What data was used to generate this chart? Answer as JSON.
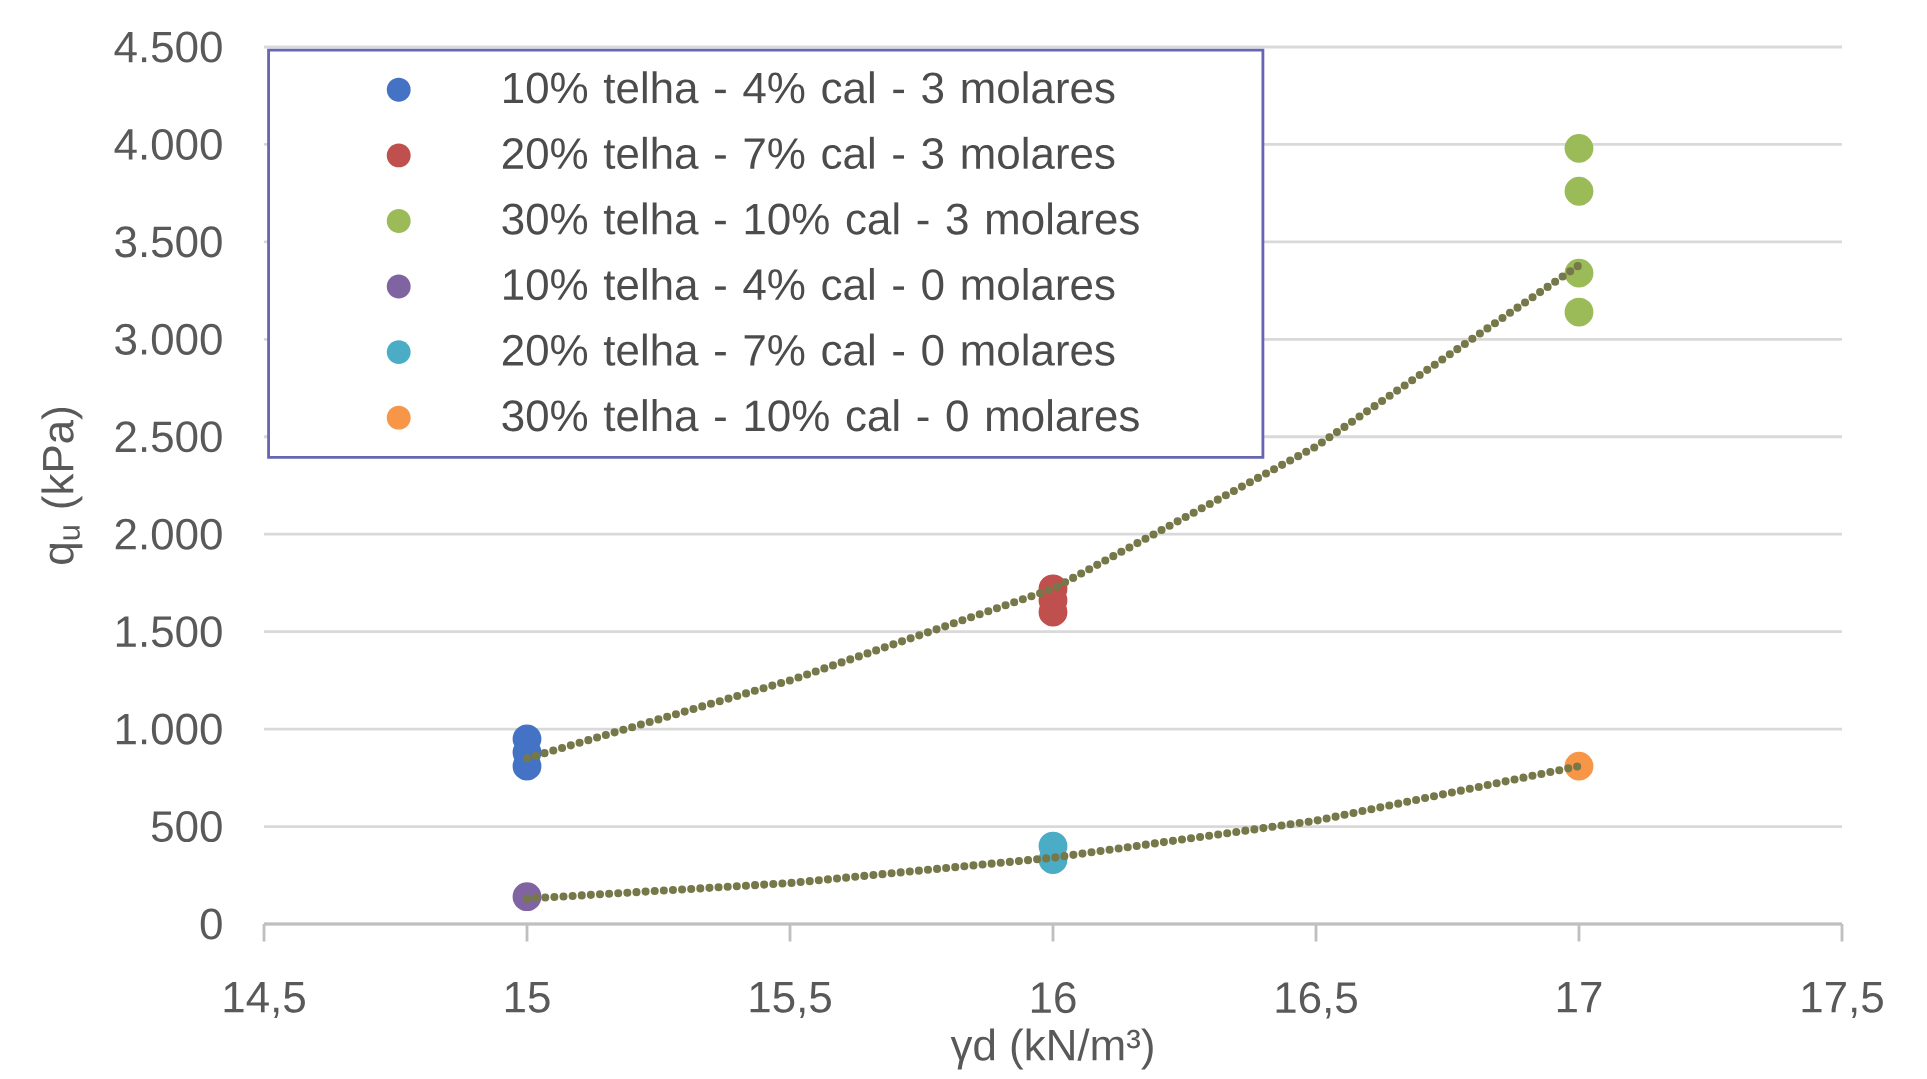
{
  "chart_data": {
    "type": "scatter",
    "xlabel": "γd (kN/m³)",
    "ylabel": "q$_{u}$ (kPa)",
    "xlim": [
      14.5,
      17.5
    ],
    "ylim": [
      0,
      4500
    ],
    "xticks": [
      {
        "value": 14.5,
        "label": "14,5"
      },
      15,
      {
        "value": 15.5,
        "label": "15,5"
      },
      16,
      {
        "value": 16.5,
        "label": "16,5"
      },
      17,
      {
        "value": 17.5,
        "label": "17,5"
      }
    ],
    "yticks": [
      0,
      500,
      {
        "value": 1000,
        "label": "1.000"
      },
      {
        "value": 1500,
        "label": "1.500"
      },
      {
        "value": 2000,
        "label": "2.000"
      },
      {
        "value": 2500,
        "label": "2.500"
      },
      {
        "value": 3000,
        "label": "3.000"
      },
      {
        "value": 3500,
        "label": "3.500"
      },
      {
        "value": 4000,
        "label": "4.000"
      },
      {
        "value": 4500,
        "label": "4.500"
      }
    ],
    "grid": "y",
    "legend": "top left",
    "marker": "circle",
    "series": [
      {
        "name": "10% telha - 4% cal - 3 molares",
        "color": "#4472c4",
        "x": [
          15,
          15,
          15
        ],
        "values": [
          950,
          880,
          810
        ]
      },
      {
        "name": "20% telha - 7% cal - 3 molares",
        "color": "#c0504d",
        "x": [
          16,
          16,
          16
        ],
        "values": [
          1720,
          1660,
          1600
        ]
      },
      {
        "name": "30% telha - 10% cal - 3 molares",
        "color": "#9bbb59",
        "x": [
          17,
          17,
          17,
          17
        ],
        "values": [
          3980,
          3760,
          3340,
          3140
        ]
      },
      {
        "name": "10% telha - 4% cal - 0 molares",
        "color": "#8064a2",
        "x": [
          15
        ],
        "values": [
          140
        ]
      },
      {
        "name": "20% telha - 7% cal - 0 molares",
        "color": "#4bacc6",
        "x": [
          16,
          16
        ],
        "values": [
          400,
          330
        ]
      },
      {
        "name": "30% telha - 10% cal - 0 molares",
        "color": "#f79646",
        "x": [
          17
        ],
        "values": [
          810
        ]
      },
      {
        "type": "line",
        "color": "#76784a",
        "line_style": "dotted",
        "marker": "none",
        "x": [
          15,
          15.5,
          16,
          16.5,
          17
        ],
        "values": [
          850,
          1250,
          1720,
          2450,
          3380
        ]
      },
      {
        "type": "line",
        "color": "#76784a",
        "line_style": "dotted",
        "marker": "none",
        "x": [
          15,
          15.5,
          16,
          16.5,
          17
        ],
        "values": [
          130,
          210,
          340,
          530,
          810
        ]
      }
    ]
  }
}
